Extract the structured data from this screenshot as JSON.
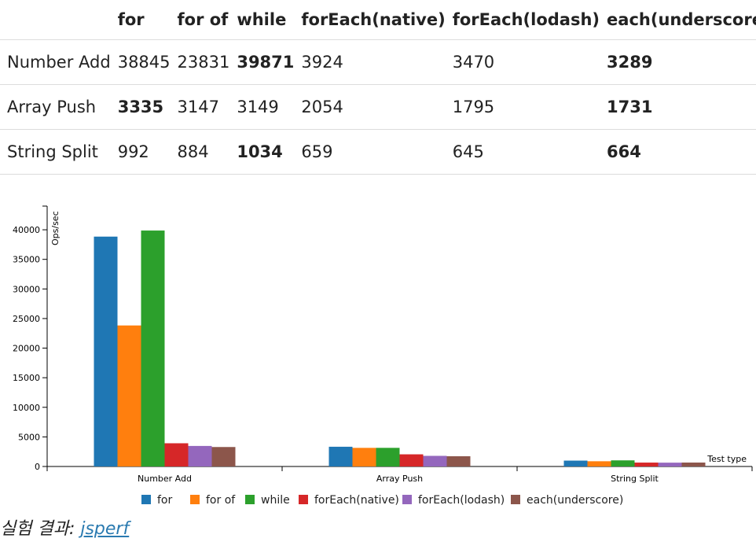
{
  "table": {
    "headers": [
      "",
      "for",
      "for of",
      "while",
      "forEach(native)",
      "forEach(lodash)",
      "each(underscore)"
    ],
    "rows": [
      {
        "label": "Number Add",
        "cells": [
          "38845",
          "23831",
          "39871",
          "3924",
          "3470",
          "3289"
        ],
        "bold": [
          false,
          false,
          true,
          false,
          false,
          true
        ]
      },
      {
        "label": "Array Push",
        "cells": [
          "3335",
          "3147",
          "3149",
          "2054",
          "1795",
          "1731"
        ],
        "bold": [
          true,
          false,
          false,
          false,
          false,
          true
        ]
      },
      {
        "label": "String Split",
        "cells": [
          "992",
          "884",
          "1034",
          "659",
          "645",
          "664"
        ],
        "bold": [
          false,
          false,
          true,
          false,
          false,
          true
        ]
      }
    ]
  },
  "chart_data": {
    "type": "bar",
    "categories": [
      "Number Add",
      "Array Push",
      "String Split"
    ],
    "series": [
      {
        "name": "for",
        "values": [
          38845,
          3335,
          992
        ],
        "color": "#1f77b4"
      },
      {
        "name": "for of",
        "values": [
          23831,
          3147,
          884
        ],
        "color": "#ff7f0e"
      },
      {
        "name": "while",
        "values": [
          39871,
          3149,
          1034
        ],
        "color": "#2ca02c"
      },
      {
        "name": "forEach(native)",
        "values": [
          3924,
          2054,
          659
        ],
        "color": "#d62728"
      },
      {
        "name": "forEach(lodash)",
        "values": [
          3470,
          1795,
          645
        ],
        "color": "#9467bd"
      },
      {
        "name": "each(underscore)",
        "values": [
          3289,
          1731,
          664
        ],
        "color": "#8c564b"
      }
    ],
    "xlabel": "Test type",
    "ylabel": "Ops/sec",
    "ylim": [
      0,
      44000
    ],
    "yticks": [
      0,
      5000,
      10000,
      15000,
      20000,
      25000,
      30000,
      35000,
      40000
    ],
    "legend": "bottom",
    "grid": false
  },
  "caption": {
    "prefix": "실험 결과: ",
    "link_text": "jsperf"
  }
}
